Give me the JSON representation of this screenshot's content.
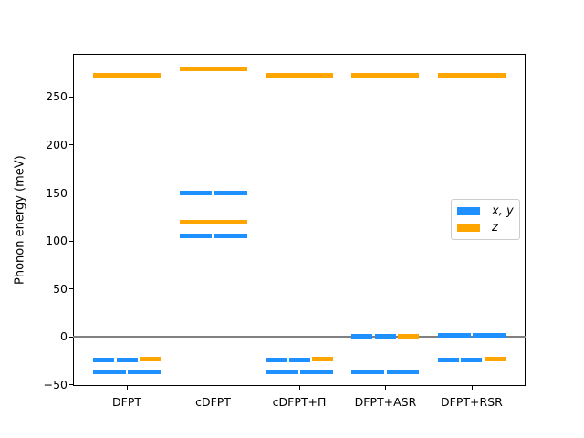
{
  "figure": {
    "background": "#ffffff"
  },
  "chart_data": {
    "type": "scatter",
    "marker": "horizontal-line-segment",
    "title": "",
    "xlabel": "",
    "ylabel": "Phonon energy (meV)",
    "units": "meV",
    "grid": false,
    "categories": [
      "DFPT",
      "cDFPT",
      "cDFPT+Π",
      "DFPT+ASR",
      "DFPT+RSR"
    ],
    "y_axis": {
      "label": "Phonon energy (meV)",
      "ticks": [
        -50,
        0,
        50,
        100,
        150,
        200,
        250
      ],
      "tick_labels": [
        "−50",
        "0",
        "50",
        "100",
        "150",
        "200",
        "250"
      ],
      "min": -51,
      "max": 295
    },
    "zero_line": {
      "value": 0,
      "color": "#808080"
    },
    "series": [
      {
        "key": "xy",
        "name": "x, y",
        "color": "#1E90FF"
      },
      {
        "key": "z",
        "name": "z",
        "color": "#FFA500"
      }
    ],
    "legend": {
      "position": "center-right",
      "items": [
        {
          "label": "x, y",
          "color": "#1E90FF"
        },
        {
          "label": "z",
          "color": "#FFA500"
        }
      ]
    },
    "levels": [
      {
        "category": "DFPT",
        "rows": [
          [
            {
              "s": "xy",
              "v": -24
            },
            {
              "s": "xy",
              "v": -24
            },
            {
              "s": "z",
              "v": -23
            }
          ],
          [
            {
              "s": "xy",
              "v": -36
            },
            {
              "s": "xy",
              "v": -36
            }
          ],
          [
            {
              "s": "z",
              "v": 273
            }
          ]
        ]
      },
      {
        "category": "cDFPT",
        "rows": [
          [
            {
              "s": "xy",
              "v": 105
            },
            {
              "s": "xy",
              "v": 105
            }
          ],
          [
            {
              "s": "z",
              "v": 120
            }
          ],
          [
            {
              "s": "xy",
              "v": 150
            },
            {
              "s": "xy",
              "v": 150
            }
          ],
          [
            {
              "s": "z",
              "v": 279
            }
          ]
        ]
      },
      {
        "category": "cDFPT+Π",
        "rows": [
          [
            {
              "s": "xy",
              "v": -24
            },
            {
              "s": "xy",
              "v": -24
            },
            {
              "s": "z",
              "v": -23
            }
          ],
          [
            {
              "s": "xy",
              "v": -36
            },
            {
              "s": "xy",
              "v": -36
            }
          ],
          [
            {
              "s": "z",
              "v": 273
            }
          ]
        ]
      },
      {
        "category": "DFPT+ASR",
        "rows": [
          [
            {
              "s": "xy",
              "v": 1
            },
            {
              "s": "xy",
              "v": 1
            },
            {
              "s": "z",
              "v": 1
            }
          ],
          [
            {
              "s": "xy",
              "v": -36
            },
            {
              "s": "xy",
              "v": -36
            }
          ],
          [
            {
              "s": "z",
              "v": 273
            }
          ]
        ]
      },
      {
        "category": "DFPT+RSR",
        "rows": [
          [
            {
              "s": "xy",
              "v": 2
            },
            {
              "s": "xy",
              "v": 2
            }
          ],
          [
            {
              "s": "xy",
              "v": -24
            },
            {
              "s": "xy",
              "v": -24
            },
            {
              "s": "z",
              "v": -23
            }
          ],
          [
            {
              "s": "z",
              "v": 273
            }
          ]
        ]
      }
    ]
  }
}
